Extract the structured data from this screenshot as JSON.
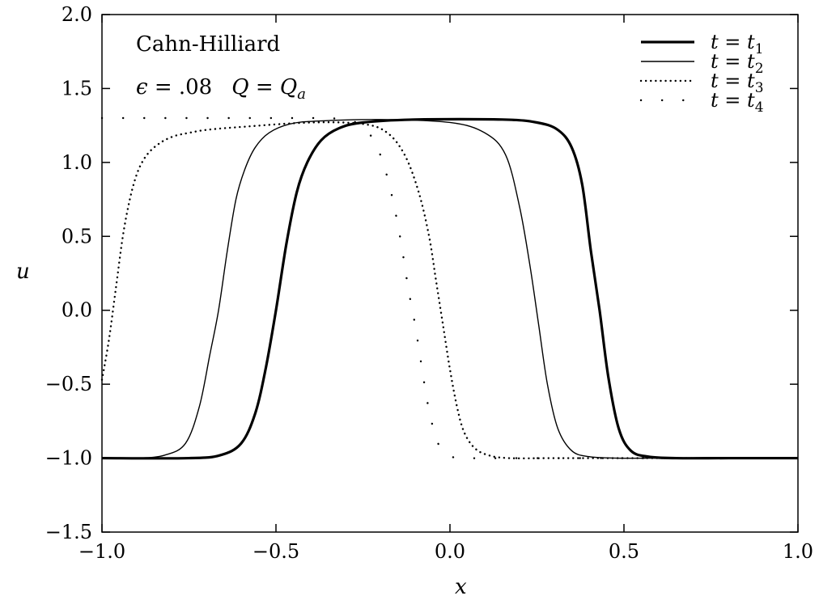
{
  "chart_data": {
    "type": "line",
    "title": "",
    "xlabel": "x",
    "ylabel": "u",
    "xlim": [
      -1.0,
      1.0
    ],
    "ylim": [
      -1.5,
      2.0
    ],
    "x_ticks": [
      "−1.0",
      "−0.5",
      "0.0",
      "0.5",
      "1.0"
    ],
    "y_ticks": [
      "−1.5",
      "−1.0",
      "−0.5",
      "0.0",
      "0.5",
      "1.0",
      "1.5",
      "2.0"
    ],
    "annotations": {
      "line1": "Cahn-Hilliard",
      "eps_symbol": "ϵ",
      "eps_value": " = .08",
      "q_text": "Q",
      "q_eq": " = ",
      "q_sub": "a"
    },
    "legend_position": "top-right",
    "series": [
      {
        "name": "t = t1",
        "label": {
          "t": "t",
          "eq": " = ",
          "var": "t",
          "sub": "1"
        },
        "style": "solid-thick",
        "x": [
          -1.0,
          -0.75,
          -0.66,
          -0.6,
          -0.56,
          -0.53,
          -0.5,
          -0.47,
          -0.44,
          -0.41,
          -0.37,
          -0.32,
          -0.25,
          -0.1,
          0.15,
          0.25,
          0.31,
          0.35,
          0.38,
          0.405,
          0.43,
          0.455,
          0.485,
          0.52,
          0.57,
          0.65,
          0.8,
          1.0
        ],
        "values": [
          -1.0,
          -1.0,
          -0.98,
          -0.9,
          -0.7,
          -0.4,
          0.0,
          0.45,
          0.8,
          1.0,
          1.15,
          1.23,
          1.27,
          1.29,
          1.29,
          1.27,
          1.22,
          1.1,
          0.85,
          0.4,
          0.0,
          -0.45,
          -0.8,
          -0.95,
          -0.99,
          -1.0,
          -1.0,
          -1.0
        ]
      },
      {
        "name": "t = t2",
        "label": {
          "t": "t",
          "eq": " = ",
          "var": "t",
          "sub": "2"
        },
        "style": "solid-thin",
        "x": [
          -1.0,
          -0.9,
          -0.82,
          -0.76,
          -0.72,
          -0.69,
          -0.665,
          -0.64,
          -0.615,
          -0.59,
          -0.56,
          -0.52,
          -0.46,
          -0.38,
          -0.2,
          0.0,
          0.1,
          0.16,
          0.2,
          0.23,
          0.255,
          0.28,
          0.31,
          0.35,
          0.4,
          0.48,
          0.6,
          1.0
        ],
        "values": [
          -1.0,
          -1.0,
          -0.98,
          -0.9,
          -0.65,
          -0.3,
          0.0,
          0.4,
          0.75,
          0.95,
          1.1,
          1.2,
          1.26,
          1.28,
          1.29,
          1.27,
          1.2,
          1.05,
          0.7,
          0.3,
          -0.1,
          -0.5,
          -0.8,
          -0.95,
          -0.99,
          -1.0,
          -1.0,
          -1.0
        ]
      },
      {
        "name": "t = t3",
        "label": {
          "t": "t",
          "eq": " = ",
          "var": "t",
          "sub": "3"
        },
        "style": "dotted-dense",
        "x": [
          -1.0,
          -0.98,
          -0.96,
          -0.94,
          -0.92,
          -0.9,
          -0.88,
          -0.86,
          -0.84,
          -0.82,
          -0.79,
          -0.75,
          -0.7,
          -0.6,
          -0.4,
          -0.25,
          -0.18,
          -0.13,
          -0.09,
          -0.06,
          -0.04,
          -0.02,
          0.0,
          0.02,
          0.04,
          0.07,
          0.11,
          0.17,
          0.3,
          0.5,
          1.0
        ],
        "values": [
          -0.47,
          -0.2,
          0.15,
          0.5,
          0.75,
          0.92,
          1.02,
          1.08,
          1.12,
          1.15,
          1.18,
          1.2,
          1.22,
          1.24,
          1.27,
          1.26,
          1.2,
          1.05,
          0.8,
          0.5,
          0.2,
          -0.1,
          -0.4,
          -0.65,
          -0.82,
          -0.93,
          -0.98,
          -1.0,
          -1.0,
          -1.0,
          -1.0
        ]
      },
      {
        "name": "t = t4",
        "label": {
          "t": "t",
          "eq": " = ",
          "var": "t",
          "sub": "4"
        },
        "style": "dotted-sparse",
        "x": [
          -1.0,
          -0.95,
          -0.9,
          -0.85,
          -0.8,
          -0.75,
          -0.7,
          -0.65,
          -0.6,
          -0.55,
          -0.5,
          -0.45,
          -0.4,
          -0.35,
          -0.3,
          -0.27,
          -0.24,
          -0.22,
          -0.2,
          -0.18,
          -0.16,
          -0.14,
          -0.12,
          -0.1,
          -0.09,
          -0.08,
          -0.07,
          -0.06,
          -0.05,
          -0.04,
          -0.03,
          -0.015,
          0.0,
          0.06,
          0.2,
          0.4,
          0.6,
          0.8,
          1.0
        ],
        "values": [
          1.3,
          1.3,
          1.3,
          1.3,
          1.3,
          1.3,
          1.3,
          1.3,
          1.3,
          1.3,
          1.3,
          1.3,
          1.3,
          1.3,
          1.29,
          1.27,
          1.22,
          1.15,
          1.05,
          0.9,
          0.7,
          0.45,
          0.15,
          -0.1,
          -0.25,
          -0.4,
          -0.55,
          -0.68,
          -0.78,
          -0.86,
          -0.92,
          -0.96,
          -0.99,
          -1.0,
          -1.0,
          -1.0,
          -1.0,
          -1.0,
          -1.0
        ]
      }
    ]
  }
}
